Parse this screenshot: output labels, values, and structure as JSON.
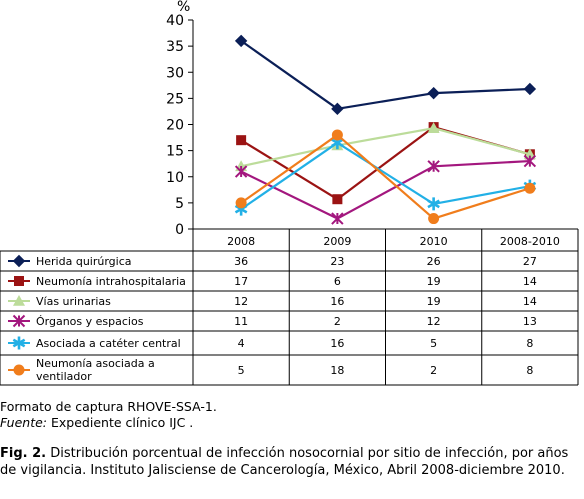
{
  "chart_data": {
    "type": "line",
    "title": "",
    "ylabel": "%",
    "xlabel": "",
    "ylim": [
      0,
      40
    ],
    "yticks": [
      0,
      5,
      10,
      15,
      20,
      25,
      30,
      35,
      40
    ],
    "categories": [
      "2008",
      "2009",
      "2010",
      "2008-2010"
    ],
    "grid": false,
    "legend": "data-table-below",
    "series": [
      {
        "name": "Herida quirúrgica",
        "marker": "diamond",
        "color": "#0b1f57",
        "plot": [
          36,
          23,
          26,
          26.8
        ],
        "values": [
          "36",
          "23",
          "26",
          "27"
        ]
      },
      {
        "name": "Neumonía intrahospitalaria",
        "marker": "square",
        "color": "#9b1313",
        "plot": [
          17,
          5.7,
          19.5,
          14.3
        ],
        "values": [
          "17",
          "6",
          "19",
          "14"
        ]
      },
      {
        "name": "Vías urinarias",
        "marker": "triangle",
        "color": "#bcdc9a",
        "plot": [
          12,
          16,
          19.3,
          14.3
        ],
        "values": [
          "12",
          "16",
          "19",
          "14"
        ]
      },
      {
        "name": "Órganos y espacios",
        "marker": "xstar",
        "color": "#a3177e",
        "plot": [
          11,
          2,
          12,
          13
        ],
        "values": [
          "11",
          "2",
          "12",
          "13"
        ]
      },
      {
        "name": "Asociada a catéter central",
        "marker": "asterisk",
        "color": "#22b0e6",
        "plot": [
          3.8,
          16.5,
          4.8,
          8.2
        ],
        "values": [
          "4",
          "16",
          "5",
          "8"
        ]
      },
      {
        "name": "Neumonía asociada a ventilador",
        "marker": "circle",
        "color": "#f07d1c",
        "plot": [
          5,
          18,
          2,
          7.8
        ],
        "values": [
          "5",
          "18",
          "2",
          "8"
        ]
      }
    ]
  },
  "notes": {
    "format": "Formato de captura RHOVE-SSA-1.",
    "source_label": "Fuente:",
    "source_text": " Expediente clínico IJC ."
  },
  "caption": {
    "label": "Fig. 2.",
    "text": " Distribución porcentual de infección nosocornial por sitio de infección, por años de vigilancia. Instituto Jalisciense de Cancerología, México, Abril 2008-diciembre 2010."
  }
}
